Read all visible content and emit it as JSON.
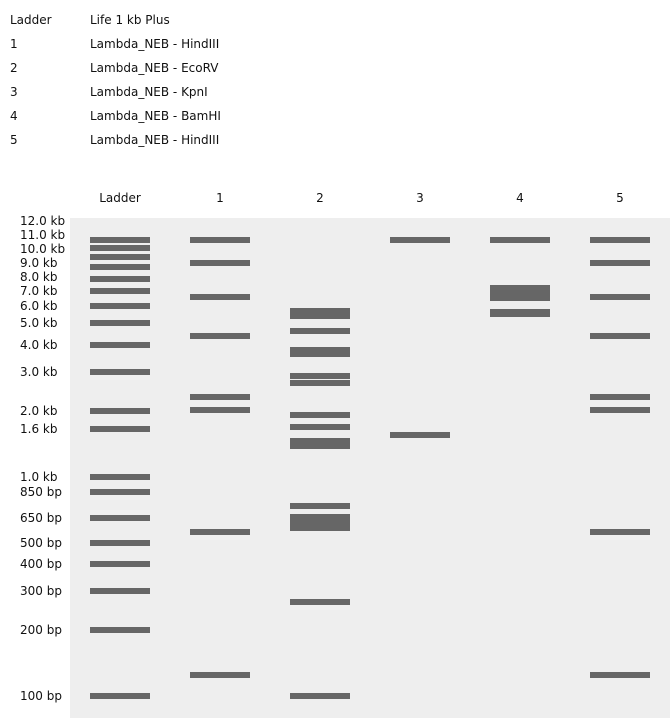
{
  "legend": [
    {
      "key": "Ladder",
      "value": "Life 1 kb Plus"
    },
    {
      "key": "1",
      "value": "Lambda_NEB - HindIII"
    },
    {
      "key": "2",
      "value": "Lambda_NEB - EcoRV"
    },
    {
      "key": "3",
      "value": "Lambda_NEB - KpnI"
    },
    {
      "key": "4",
      "value": "Lambda_NEB - BamHI"
    },
    {
      "key": "5",
      "value": "Lambda_NEB - HindIII"
    }
  ],
  "lane_headers": [
    "Ladder",
    "1",
    "2",
    "3",
    "4",
    "5"
  ],
  "colors": {
    "gel": "#eeeeee",
    "band": "#666666"
  },
  "ladder": {
    "sizes_bp": [
      12000,
      11000,
      10000,
      9000,
      8000,
      7000,
      6000,
      5000,
      4000,
      3000,
      2000,
      1600,
      1000,
      850,
      650,
      500,
      400,
      300,
      200,
      100
    ],
    "labels": [
      "12.0 kb",
      "11.0 kb",
      "10.0 kb",
      "9.0 kb",
      "8.0 kb",
      "7.0 kb",
      "6.0 kb",
      "5.0 kb",
      "4.0 kb",
      "3.0 kb",
      "2.0 kb",
      "1.6 kb",
      "1.0 kb",
      "850 bp",
      "650 bp",
      "500 bp",
      "400 bp",
      "300 bp",
      "200 bp",
      "100 bp"
    ]
  },
  "lanes": [
    {
      "bands_bp": [
        23130,
        9416,
        6557,
        4361,
        2322,
        2027,
        564,
        125
      ]
    },
    {
      "bands_bp": [
        5700,
        5400,
        4600,
        3800,
        3650,
        2880,
        2670,
        1900,
        1640,
        1420,
        1350,
        735,
        657,
        620,
        585,
        267,
        100
      ]
    },
    {
      "bands_bp": [
        29946,
        17053,
        1503
      ]
    },
    {
      "bands_bp": [
        16841,
        7233,
        6770,
        6527,
        5626,
        5505
      ]
    },
    {
      "bands_bp": [
        23130,
        9416,
        6557,
        4361,
        2322,
        2027,
        564,
        125
      ]
    }
  ]
}
